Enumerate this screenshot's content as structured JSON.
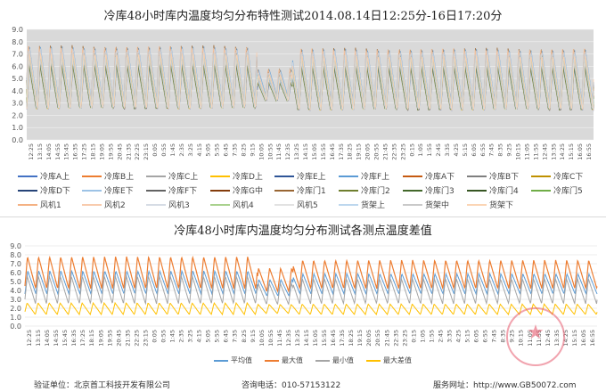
{
  "chart_data": [
    {
      "type": "line",
      "title": "冷库48小时库内温度均匀分布特性测试2014.08.14日12:25分-16日17:20分",
      "ylim": [
        0,
        9
      ],
      "yticks": [
        "0.0",
        "1.0",
        "2.0",
        "3.0",
        "4.0",
        "5.0",
        "6.0",
        "7.0",
        "8.0",
        "9.0"
      ],
      "grid": true,
      "background": "#d9d9d9",
      "legend_position": "bottom",
      "x": [
        "12:25",
        "13:15",
        "14:05",
        "14:55",
        "15:45",
        "16:35",
        "17:25",
        "18:15",
        "19:05",
        "19:55",
        "20:45",
        "21:35",
        "22:25",
        "23:15",
        "0:05",
        "0:55",
        "1:45",
        "2:35",
        "3:25",
        "4:15",
        "5:05",
        "5:55",
        "6:45",
        "7:35",
        "8:25",
        "9:15",
        "10:05",
        "10:55",
        "11:45",
        "12:35",
        "13:25",
        "14:15",
        "15:05",
        "15:55",
        "16:45",
        "17:35",
        "18:25",
        "19:15",
        "20:05",
        "20:55",
        "21:45",
        "22:35",
        "23:25",
        "0:15",
        "1:05",
        "1:55",
        "2:45",
        "3:35",
        "4:25",
        "5:15",
        "6:05",
        "6:55",
        "7:45",
        "8:35",
        "9:25",
        "10:15",
        "11:05",
        "11:55",
        "12:45",
        "13:35",
        "14:25",
        "15:15",
        "16:05",
        "16:55"
      ],
      "series_names": [
        "冷库A上",
        "冷库B上",
        "冷库C上",
        "冷库D上",
        "冷库E上",
        "冷库F上",
        "冷库A下",
        "冷库B下",
        "冷库C下",
        "冷库D下",
        "冷库E下",
        "冷库F下",
        "冷库G中",
        "冷库门1",
        "冷库门2",
        "冷库门3",
        "冷库门4",
        "冷库门5",
        "风机1",
        "风机2",
        "风机3",
        "风机4",
        "风机5",
        "货架上",
        "货架中",
        "货架下"
      ],
      "series_colors": [
        "#4472c4",
        "#ed7d31",
        "#a5a5a5",
        "#ffc000",
        "#2f5597",
        "#5b9bd5",
        "#c55a11",
        "#7f7f7f",
        "#bf9000",
        "#264478",
        "#9dc3e6",
        "#636363",
        "#843c0c",
        "#996633",
        "#6f7f2f",
        "#43682b",
        "#375623",
        "#70ad47",
        "#f4b183",
        "#f8cbad",
        "#d6dce5",
        "#a9d18e",
        "#e2e2e2",
        "#bdd7ee",
        "#c9c9c9",
        "#fbd5b5"
      ],
      "description_values": {
        "cycles": 52,
        "segments": [
          {
            "from_index": 0,
            "to_index": 26,
            "max": 7.6,
            "min": 2.6
          },
          {
            "from_index": 26,
            "to_index": 30,
            "max": 5.7,
            "min": 3.3
          },
          {
            "from_index": 30,
            "to_index": 64,
            "max": 7.4,
            "min": 2.5
          }
        ]
      }
    },
    {
      "type": "line",
      "title": "冷库48小时库内温度均匀分布测试各测点温度差值",
      "ylim": [
        0,
        9
      ],
      "yticks": [
        "0.0",
        "1.0",
        "2.0",
        "3.0",
        "4.0",
        "5.0",
        "6.0",
        "7.0",
        "8.0",
        "9.0"
      ],
      "grid": true,
      "legend_position": "bottom",
      "x": [
        "12:25",
        "13:15",
        "14:05",
        "14:55",
        "15:45",
        "16:35",
        "17:25",
        "18:15",
        "19:05",
        "19:55",
        "20:45",
        "21:35",
        "22:25",
        "23:15",
        "0:05",
        "0:55",
        "1:45",
        "2:35",
        "3:25",
        "4:15",
        "5:05",
        "5:55",
        "6:45",
        "7:35",
        "8:25",
        "9:15",
        "10:05",
        "10:55",
        "11:45",
        "12:35",
        "13:25",
        "14:15",
        "15:05",
        "15:55",
        "16:45",
        "17:35",
        "18:25",
        "19:15",
        "20:05",
        "20:55",
        "21:45",
        "22:35",
        "23:25",
        "0:15",
        "1:05",
        "1:55",
        "2:45",
        "3:35",
        "4:25",
        "5:15",
        "6:05",
        "6:55",
        "7:45",
        "8:35",
        "9:25",
        "10:15",
        "11:05",
        "11:55",
        "12:45",
        "13:35",
        "14:25",
        "15:15",
        "16:05",
        "16:55"
      ],
      "series": [
        {
          "name": "平均值",
          "color": "#5b9bd5",
          "max": 6.2,
          "min": 3.6
        },
        {
          "name": "最大值",
          "color": "#ed7d31",
          "max": 7.8,
          "min": 4.2
        },
        {
          "name": "最小值",
          "color": "#a5a5a5",
          "max": 5.6,
          "min": 2.5
        },
        {
          "name": "最大差值",
          "color": "#ffc000",
          "max": 2.6,
          "min": 1.3
        }
      ]
    }
  ],
  "footer": {
    "unit": "验证单位：北京首工科技开发有限公司",
    "phone": "咨询电话：010-57153122",
    "site": "服务网址：http://www.GB50072.com"
  },
  "stamp": {
    "text": "★"
  }
}
